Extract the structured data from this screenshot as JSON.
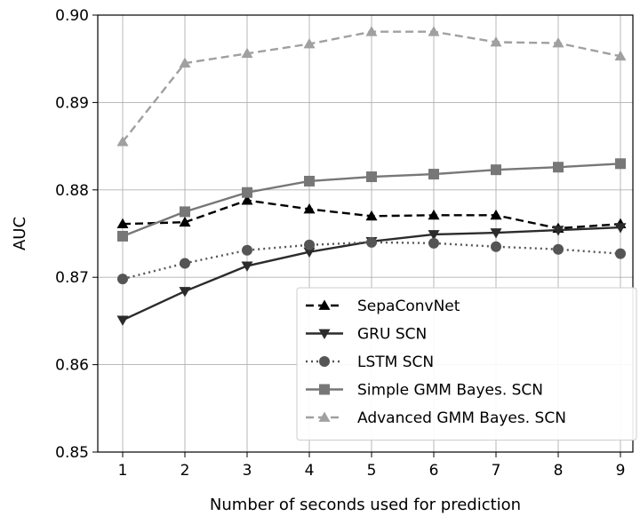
{
  "chart_data": {
    "type": "line",
    "title": "",
    "xlabel": "Number of seconds used for prediction",
    "ylabel": "AUC",
    "x": [
      1,
      2,
      3,
      4,
      5,
      6,
      7,
      8,
      9
    ],
    "xlim": [
      0.6,
      9.2
    ],
    "ylim": [
      0.85,
      0.9
    ],
    "x_ticks": [
      "1",
      "2",
      "3",
      "4",
      "5",
      "6",
      "7",
      "8",
      "9"
    ],
    "y_ticks": [
      "0.85",
      "0.86",
      "0.87",
      "0.88",
      "0.89",
      "0.90"
    ],
    "grid": true,
    "legend_position": "lower-right",
    "series": [
      {
        "name": "SepaConvNet",
        "values": [
          0.8761,
          0.8763,
          0.8788,
          0.8778,
          0.877,
          0.8771,
          0.8771,
          0.8756,
          0.8761
        ],
        "color": "#000000",
        "linestyle": "dashed",
        "marker": "triangle-up"
      },
      {
        "name": "GRU SCN",
        "values": [
          0.8651,
          0.8684,
          0.8713,
          0.8729,
          0.8741,
          0.8749,
          0.8751,
          0.8754,
          0.8757
        ],
        "color": "#2b2b2b",
        "linestyle": "solid",
        "marker": "triangle-down"
      },
      {
        "name": "LSTM SCN",
        "values": [
          0.8698,
          0.8716,
          0.8731,
          0.8737,
          0.874,
          0.8739,
          0.8735,
          0.8732,
          0.8727
        ],
        "color": "#555555",
        "linestyle": "dotted",
        "marker": "circle"
      },
      {
        "name": "Simple GMM Bayes. SCN",
        "values": [
          0.8747,
          0.8775,
          0.8797,
          0.881,
          0.8815,
          0.8818,
          0.8823,
          0.8826,
          0.883
        ],
        "color": "#777777",
        "linestyle": "solid",
        "marker": "square"
      },
      {
        "name": "Advanced GMM Bayes. SCN",
        "values": [
          0.8855,
          0.8945,
          0.8956,
          0.8967,
          0.8981,
          0.8981,
          0.8969,
          0.8968,
          0.8953
        ],
        "color": "#a0a0a0",
        "linestyle": "dashed",
        "marker": "triangle-up"
      }
    ]
  }
}
